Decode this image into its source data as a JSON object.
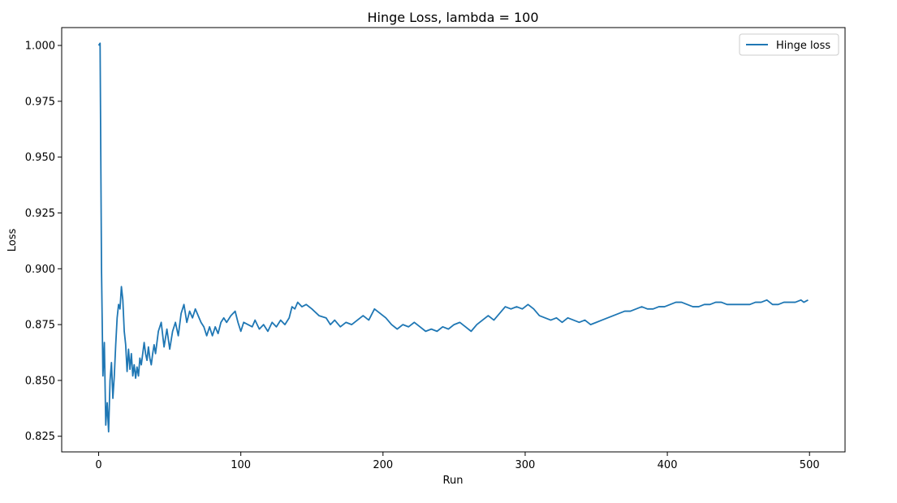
{
  "chart_data": {
    "type": "line",
    "title": "Hinge Loss, lambda = 100",
    "xlabel": "Run",
    "ylabel": "Loss",
    "xlim": [
      -26,
      525
    ],
    "ylim": [
      0.818,
      1.008
    ],
    "x_ticks": [
      0,
      100,
      200,
      300,
      400,
      500
    ],
    "x_tick_labels": [
      "0",
      "100",
      "200",
      "300",
      "400",
      "500"
    ],
    "y_ticks": [
      0.825,
      0.85,
      0.875,
      0.9,
      0.925,
      0.95,
      0.975,
      1.0
    ],
    "y_tick_labels": [
      "0.825",
      "0.850",
      "0.875",
      "0.900",
      "0.925",
      "0.950",
      "0.975",
      "1.000"
    ],
    "grid": false,
    "legend": {
      "position": "top-right",
      "entries": [
        "Hinge loss"
      ]
    },
    "series": [
      {
        "name": "Hinge loss",
        "color": "#1f77b4",
        "points": [
          [
            0,
            1.0
          ],
          [
            1,
            1.001
          ],
          [
            2,
            0.9
          ],
          [
            3,
            0.852
          ],
          [
            4,
            0.867
          ],
          [
            5,
            0.83
          ],
          [
            6,
            0.84
          ],
          [
            7,
            0.827
          ],
          [
            8,
            0.85
          ],
          [
            9,
            0.858
          ],
          [
            10,
            0.842
          ],
          [
            11,
            0.852
          ],
          [
            12,
            0.866
          ],
          [
            13,
            0.878
          ],
          [
            14,
            0.884
          ],
          [
            15,
            0.882
          ],
          [
            16,
            0.892
          ],
          [
            17,
            0.886
          ],
          [
            18,
            0.872
          ],
          [
            19,
            0.866
          ],
          [
            20,
            0.854
          ],
          [
            21,
            0.864
          ],
          [
            22,
            0.855
          ],
          [
            23,
            0.862
          ],
          [
            24,
            0.852
          ],
          [
            25,
            0.857
          ],
          [
            26,
            0.851
          ],
          [
            27,
            0.856
          ],
          [
            28,
            0.852
          ],
          [
            29,
            0.86
          ],
          [
            30,
            0.857
          ],
          [
            31,
            0.862
          ],
          [
            32,
            0.867
          ],
          [
            33,
            0.862
          ],
          [
            34,
            0.859
          ],
          [
            35,
            0.865
          ],
          [
            36,
            0.86
          ],
          [
            37,
            0.857
          ],
          [
            38,
            0.862
          ],
          [
            39,
            0.866
          ],
          [
            40,
            0.862
          ],
          [
            42,
            0.872
          ],
          [
            44,
            0.876
          ],
          [
            46,
            0.865
          ],
          [
            48,
            0.873
          ],
          [
            50,
            0.864
          ],
          [
            52,
            0.872
          ],
          [
            54,
            0.876
          ],
          [
            56,
            0.87
          ],
          [
            58,
            0.88
          ],
          [
            60,
            0.884
          ],
          [
            62,
            0.876
          ],
          [
            64,
            0.881
          ],
          [
            66,
            0.878
          ],
          [
            68,
            0.882
          ],
          [
            70,
            0.879
          ],
          [
            72,
            0.876
          ],
          [
            74,
            0.874
          ],
          [
            76,
            0.87
          ],
          [
            78,
            0.874
          ],
          [
            80,
            0.87
          ],
          [
            82,
            0.874
          ],
          [
            84,
            0.871
          ],
          [
            86,
            0.876
          ],
          [
            88,
            0.878
          ],
          [
            90,
            0.876
          ],
          [
            93,
            0.879
          ],
          [
            96,
            0.881
          ],
          [
            98,
            0.876
          ],
          [
            100,
            0.872
          ],
          [
            102,
            0.876
          ],
          [
            105,
            0.875
          ],
          [
            108,
            0.874
          ],
          [
            110,
            0.877
          ],
          [
            113,
            0.873
          ],
          [
            116,
            0.875
          ],
          [
            119,
            0.872
          ],
          [
            122,
            0.876
          ],
          [
            125,
            0.874
          ],
          [
            128,
            0.877
          ],
          [
            131,
            0.875
          ],
          [
            134,
            0.878
          ],
          [
            136,
            0.883
          ],
          [
            138,
            0.882
          ],
          [
            140,
            0.885
          ],
          [
            143,
            0.883
          ],
          [
            146,
            0.884
          ],
          [
            150,
            0.882
          ],
          [
            155,
            0.879
          ],
          [
            160,
            0.878
          ],
          [
            163,
            0.875
          ],
          [
            166,
            0.877
          ],
          [
            170,
            0.874
          ],
          [
            174,
            0.876
          ],
          [
            178,
            0.875
          ],
          [
            182,
            0.877
          ],
          [
            186,
            0.879
          ],
          [
            190,
            0.877
          ],
          [
            194,
            0.882
          ],
          [
            198,
            0.88
          ],
          [
            202,
            0.878
          ],
          [
            206,
            0.875
          ],
          [
            210,
            0.873
          ],
          [
            214,
            0.875
          ],
          [
            218,
            0.874
          ],
          [
            222,
            0.876
          ],
          [
            226,
            0.874
          ],
          [
            230,
            0.872
          ],
          [
            234,
            0.873
          ],
          [
            238,
            0.872
          ],
          [
            242,
            0.874
          ],
          [
            246,
            0.873
          ],
          [
            250,
            0.875
          ],
          [
            254,
            0.876
          ],
          [
            258,
            0.874
          ],
          [
            262,
            0.872
          ],
          [
            266,
            0.875
          ],
          [
            270,
            0.877
          ],
          [
            274,
            0.879
          ],
          [
            278,
            0.877
          ],
          [
            282,
            0.88
          ],
          [
            286,
            0.883
          ],
          [
            290,
            0.882
          ],
          [
            294,
            0.883
          ],
          [
            298,
            0.882
          ],
          [
            302,
            0.884
          ],
          [
            306,
            0.882
          ],
          [
            310,
            0.879
          ],
          [
            314,
            0.878
          ],
          [
            318,
            0.877
          ],
          [
            322,
            0.878
          ],
          [
            326,
            0.876
          ],
          [
            330,
            0.878
          ],
          [
            334,
            0.877
          ],
          [
            338,
            0.876
          ],
          [
            342,
            0.877
          ],
          [
            346,
            0.875
          ],
          [
            350,
            0.876
          ],
          [
            354,
            0.877
          ],
          [
            358,
            0.878
          ],
          [
            362,
            0.879
          ],
          [
            366,
            0.88
          ],
          [
            370,
            0.881
          ],
          [
            374,
            0.881
          ],
          [
            378,
            0.882
          ],
          [
            382,
            0.883
          ],
          [
            386,
            0.882
          ],
          [
            390,
            0.882
          ],
          [
            394,
            0.883
          ],
          [
            398,
            0.883
          ],
          [
            402,
            0.884
          ],
          [
            406,
            0.885
          ],
          [
            410,
            0.885
          ],
          [
            414,
            0.884
          ],
          [
            418,
            0.883
          ],
          [
            422,
            0.883
          ],
          [
            426,
            0.884
          ],
          [
            430,
            0.884
          ],
          [
            434,
            0.885
          ],
          [
            438,
            0.885
          ],
          [
            442,
            0.884
          ],
          [
            446,
            0.884
          ],
          [
            450,
            0.884
          ],
          [
            454,
            0.884
          ],
          [
            458,
            0.884
          ],
          [
            462,
            0.885
          ],
          [
            466,
            0.885
          ],
          [
            470,
            0.886
          ],
          [
            474,
            0.884
          ],
          [
            478,
            0.884
          ],
          [
            482,
            0.885
          ],
          [
            486,
            0.885
          ],
          [
            490,
            0.885
          ],
          [
            494,
            0.886
          ],
          [
            496,
            0.885
          ],
          [
            499,
            0.886
          ]
        ]
      }
    ]
  }
}
